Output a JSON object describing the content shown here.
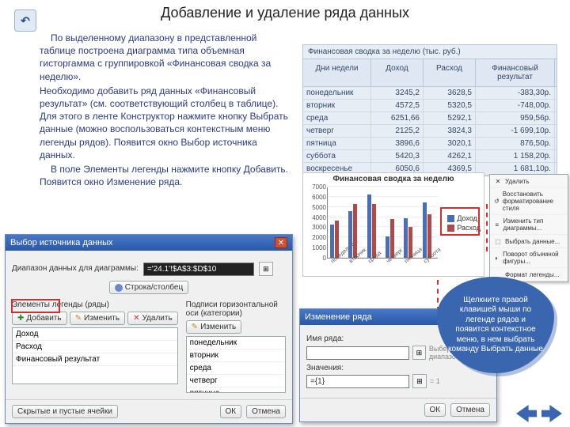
{
  "title": "Добавление и удаление ряда данных",
  "body": {
    "p1": "По выделенному диапазону в представленной таблице построена диаграмма типа объемная гисторгамма с группировкой «Финансовая сводка за неделю».",
    "p2": "Необходимо добавить ряд данных «Финансовый результат» (см. соответствующий столбец в таблице). Для этого в ленте Конструктор нажмите кнопку Выбрать данные (можно воспользоваться контекстным меню легенды рядов). Появится окно Выбор источника данных.",
    "p3": "В поле Элементы легенды нажмите кнопку Добавить. Появится окно Изменение ряда."
  },
  "table": {
    "caption": "Финансовая сводка за неделю (тыс. руб.)",
    "headers": [
      "Дни недели",
      "Доход",
      "Расход",
      "Финансовый результат"
    ],
    "rows": [
      [
        "понедельник",
        "3245,2",
        "3628,5",
        "-383,30р."
      ],
      [
        "вторник",
        "4572,5",
        "5320,5",
        "-748,00р."
      ],
      [
        "среда",
        "6251,66",
        "5292,1",
        "959,56р."
      ],
      [
        "четверг",
        "2125,2",
        "3824,3",
        "-1 699,10р."
      ],
      [
        "пятница",
        "3896,6",
        "3020,1",
        "876,50р."
      ],
      [
        "суббота",
        "5420,3",
        "4262,1",
        "1 158,20р."
      ],
      [
        "воскресенье",
        "6050,6",
        "4369,5",
        "1 681,10р."
      ]
    ]
  },
  "chart": {
    "title": "Финансовая сводка за неделю",
    "ymax": 7000,
    "ystep": 1000,
    "categories": [
      "понедельник",
      "вторник",
      "среда",
      "четверг",
      "пятница",
      "суббота"
    ],
    "series": [
      {
        "name": "Доход",
        "color": "#4a6db8",
        "values": [
          3245,
          4572,
          6252,
          2125,
          3897,
          5420
        ]
      },
      {
        "name": "Расход",
        "color": "#b04a4a",
        "values": [
          3629,
          5321,
          5292,
          3824,
          3020,
          4262
        ]
      }
    ],
    "bg": "#ffffff"
  },
  "context_menu": {
    "items": [
      {
        "icon": "✕",
        "label": "Удалить"
      },
      {
        "icon": "↺",
        "label": "Восстановить форматирование стиля"
      },
      {
        "icon": "≡",
        "label": "Изменить тип диаграммы..."
      },
      {
        "icon": "⬚",
        "label": "Выбрать данные..."
      },
      {
        "icon": "◐",
        "label": "Поворот объемной фигуры..."
      },
      {
        "icon": "",
        "label": "Формат легенды..."
      }
    ]
  },
  "dlg1": {
    "title": "Выбор источника данных",
    "range_label": "Диапазон данных для диаграммы:",
    "range_value": "='24.1'!$A$3:$D$10",
    "swap_btn": "Строка/столбец",
    "left_label": "Элементы легенды (ряды)",
    "right_label": "Подписи горизонтальной оси (категории)",
    "btn_add": "Добавить",
    "btn_edit": "Изменить",
    "btn_del": "Удалить",
    "btn_edit2": "Изменить",
    "left_items": [
      "Доход",
      "Расход",
      "Финансовый результат"
    ],
    "right_items": [
      "понедельник",
      "вторник",
      "среда",
      "четверг",
      "пятница"
    ],
    "hidden_btn": "Скрытые и пустые ячейки",
    "ok": "ОК",
    "cancel": "Отмена"
  },
  "dlg2": {
    "title": "Изменение ряда",
    "name_label": "Имя ряда:",
    "name_value": "",
    "name_hint": "Выберите диапазон",
    "val_label": "Значения:",
    "val_value": "={1}",
    "val_hint": "= 1",
    "ok": "ОК",
    "cancel": "Отмена"
  },
  "callout": "Щелкните правой клавишей мыши по легенде рядов и появится контекстное меню, в нем выбрать команду Выбрать данные",
  "colors": {
    "accent": "#3a66b0",
    "red": "#d03030"
  }
}
